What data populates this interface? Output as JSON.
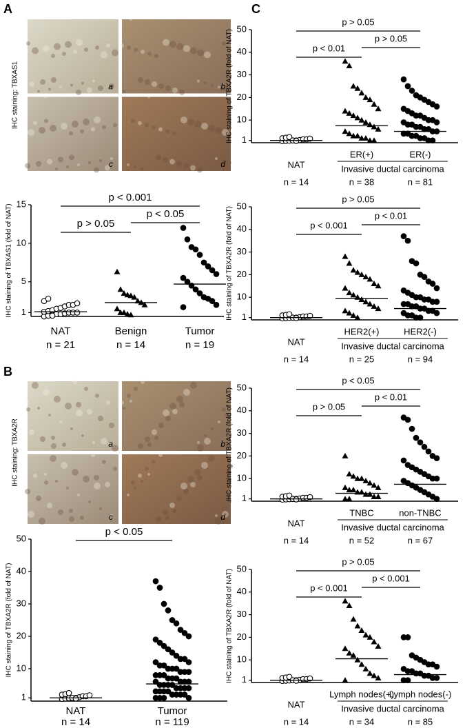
{
  "panel_labels": [
    "A",
    "B",
    "C"
  ],
  "micrographs": [
    {
      "stain": "IHC staining: TBXAS1",
      "tiles": [
        "a",
        "b",
        "c",
        "d"
      ]
    },
    {
      "stain": "IHC staining: TBXA2R",
      "tiles": [
        "a",
        "b",
        "c",
        "d"
      ]
    }
  ],
  "chart_data": [
    {
      "type": "scatter",
      "ylabel": "IHC staining of TBXAS1 (fold of NAT)",
      "ylim": [
        0.5,
        15
      ],
      "yticks": [
        1,
        5,
        10,
        15
      ],
      "groups": [
        {
          "name": "NAT",
          "n": "n = 21",
          "marker": "open-circle",
          "median": 1.1,
          "values": [
            0.5,
            0.6,
            0.7,
            0.8,
            0.8,
            0.9,
            1,
            1,
            1,
            1.1,
            1.2,
            1.3,
            1.5,
            1.6,
            1.8,
            2,
            2,
            2.2,
            2.5,
            2.8,
            0.6
          ]
        },
        {
          "name": "Benign",
          "n": "n = 14",
          "marker": "triangle",
          "median": 2.3,
          "values": [
            6.3,
            4,
            3.5,
            3.3,
            3.2,
            3,
            2.5,
            2.3,
            2,
            1.5,
            1,
            1,
            0.8,
            0.7
          ]
        },
        {
          "name": "Tumor",
          "n": "n = 19",
          "marker": "filled-circle",
          "median": 4.7,
          "values": [
            12,
            10.5,
            9.5,
            9.2,
            8.5,
            7.5,
            7,
            6.5,
            6,
            5.5,
            5,
            4.5,
            4,
            3.5,
            3,
            2.8,
            2.5,
            2,
            1.7
          ]
        }
      ],
      "comparisons": [
        {
          "label": "p < 0.001",
          "from": 0,
          "to": 2
        },
        {
          "label": "p < 0.05",
          "from": 1,
          "to": 2
        },
        {
          "label": "p > 0.05",
          "from": 0,
          "to": 1
        }
      ]
    },
    {
      "type": "scatter",
      "ylabel": "IHC staining of TBXA2R (fold of NAT)",
      "ylim": [
        0,
        50
      ],
      "yticks": [
        1,
        10,
        20,
        30,
        40,
        50
      ],
      "groups": [
        {
          "name": "NAT",
          "n": "n = 14",
          "marker": "open-circle",
          "median": 1.0,
          "values": [
            0.7,
            0.8,
            0.9,
            1,
            1,
            1.2,
            1.5,
            1.5,
            1.8,
            2,
            2.2,
            2.5,
            1,
            0.8
          ]
        },
        {
          "name": "Tumor",
          "n": "n = 119",
          "marker": "filled-circle",
          "median": 5.3,
          "values": [
            37,
            35,
            30,
            28,
            25,
            24,
            22,
            21,
            20,
            19,
            18,
            17,
            16,
            15,
            14,
            13,
            13,
            12,
            12,
            11,
            11,
            10,
            10,
            10,
            9,
            9,
            9,
            8,
            8,
            8,
            7,
            7,
            7,
            6,
            6,
            6,
            6,
            5,
            5,
            5,
            5,
            4,
            4,
            4,
            4,
            3,
            3,
            3,
            3,
            2,
            2,
            2,
            2,
            1,
            1,
            1,
            1
          ]
        }
      ],
      "comparisons": [
        {
          "label": "p < 0.05",
          "from": 0,
          "to": 1
        }
      ]
    },
    {
      "type": "scatter",
      "ylabel": "IHC staining of TBXA2R (fold of NAT)",
      "ylim": [
        0,
        50
      ],
      "yticks": [
        1,
        10,
        20,
        30,
        40,
        50
      ],
      "group_caption": "Invasive ductal carcinoma",
      "groups": [
        {
          "name": "NAT",
          "n": "n = 14",
          "marker": "open-circle",
          "median": 1.0,
          "values": [
            0.7,
            0.8,
            0.9,
            1,
            1,
            1.2,
            1.5,
            1.5,
            1.8,
            2,
            2.2,
            2.5,
            1,
            0.8
          ]
        },
        {
          "name": "ER(+)",
          "n": "n = 38",
          "marker": "triangle",
          "median": 7.5,
          "values": [
            36,
            34,
            25,
            24,
            22,
            20,
            19,
            17,
            15,
            14,
            13,
            12,
            11,
            10,
            9,
            8,
            7,
            6,
            5,
            4,
            3,
            3,
            2,
            2,
            1,
            1
          ]
        },
        {
          "name": "ER(-)",
          "n": "n = 81",
          "marker": "filled-circle",
          "median": 5,
          "values": [
            28,
            25,
            23,
            21,
            20,
            19,
            18,
            17,
            16,
            15,
            14,
            13,
            12,
            12,
            11,
            10,
            10,
            9,
            9,
            8,
            8,
            7,
            7,
            6,
            6,
            5,
            5,
            4,
            4,
            3,
            3,
            2,
            2,
            1,
            1
          ]
        }
      ],
      "comparisons": [
        {
          "label": "p > 0.05",
          "from": 0,
          "to": 2
        },
        {
          "label": "p > 0.05",
          "from": 1,
          "to": 2
        },
        {
          "label": "p < 0.01",
          "from": 0,
          "to": 1
        }
      ]
    },
    {
      "type": "scatter",
      "ylabel": "IHC staining of TBXA2R (fold of NAT)",
      "ylim": [
        0,
        50
      ],
      "yticks": [
        1,
        10,
        20,
        30,
        40,
        50
      ],
      "group_caption": "Invasive ductal carcinoma",
      "groups": [
        {
          "name": "NAT",
          "n": "n = 14",
          "marker": "open-circle",
          "median": 1.0,
          "values": [
            0.7,
            0.8,
            0.9,
            1,
            1,
            1.2,
            1.5,
            1.5,
            1.8,
            2,
            2.2,
            2.5,
            1,
            0.8
          ]
        },
        {
          "name": "HER2(+)",
          "n": "n = 25",
          "marker": "triangle",
          "median": 9.5,
          "values": [
            28,
            25,
            22,
            21,
            20,
            19,
            18,
            16,
            15,
            14,
            12,
            11,
            10,
            9,
            8,
            7,
            6,
            5,
            4,
            3,
            2,
            1
          ]
        },
        {
          "name": "HER2(-)",
          "n": "n = 94",
          "marker": "filled-circle",
          "median": 5,
          "values": [
            37,
            35,
            26,
            25,
            20,
            19,
            17,
            16,
            14,
            13,
            12,
            11,
            10,
            10,
            9,
            9,
            8,
            8,
            7,
            7,
            6,
            6,
            5,
            5,
            4,
            4,
            3,
            3,
            2,
            2,
            1,
            1
          ]
        }
      ],
      "comparisons": [
        {
          "label": "p > 0.05",
          "from": 0,
          "to": 2
        },
        {
          "label": "p < 0.01",
          "from": 1,
          "to": 2
        },
        {
          "label": "p < 0.001",
          "from": 0,
          "to": 1
        }
      ]
    },
    {
      "type": "scatter",
      "ylabel": "IHC staining of TBXA2R (fold of NAT)",
      "ylim": [
        0,
        50
      ],
      "yticks": [
        1,
        10,
        20,
        30,
        40,
        50
      ],
      "group_caption": "Invasive ductal carcinoma",
      "groups": [
        {
          "name": "NAT",
          "n": "n = 14",
          "marker": "open-circle",
          "median": 1.0,
          "values": [
            0.7,
            0.8,
            0.9,
            1,
            1,
            1.2,
            1.5,
            1.5,
            1.8,
            2,
            2.2,
            2.5,
            1,
            0.8
          ]
        },
        {
          "name": "TNBC",
          "n": "n = 52",
          "marker": "triangle",
          "median": 3.5,
          "values": [
            20,
            12,
            11,
            10,
            10,
            9,
            8,
            7,
            6,
            6,
            5,
            5,
            4,
            4,
            3,
            3,
            2,
            2,
            1,
            1
          ]
        },
        {
          "name": "non-TNBC",
          "n": "n = 67",
          "marker": "filled-circle",
          "median": 7.5,
          "values": [
            37,
            36,
            32,
            28,
            26,
            24,
            22,
            20,
            19,
            18,
            16,
            15,
            14,
            13,
            12,
            11,
            10,
            10,
            9,
            8,
            7,
            6,
            5,
            4,
            3,
            2,
            1
          ]
        }
      ],
      "comparisons": [
        {
          "label": "p < 0.05",
          "from": 0,
          "to": 2
        },
        {
          "label": "p < 0.01",
          "from": 1,
          "to": 2
        },
        {
          "label": "p > 0.05",
          "from": 0,
          "to": 1
        }
      ]
    },
    {
      "type": "scatter",
      "ylabel": "IHC staining of TBXA2R (fold of NAT)",
      "ylim": [
        0,
        50
      ],
      "yticks": [
        1,
        10,
        20,
        30,
        40,
        50
      ],
      "group_caption": "Invasive ductal carcinoma",
      "groups": [
        {
          "name": "NAT",
          "n": "n = 14",
          "marker": "open-circle",
          "median": 1.0,
          "values": [
            0.7,
            0.8,
            0.9,
            1,
            1,
            1.2,
            1.5,
            1.5,
            1.8,
            2,
            2.2,
            2.5,
            1,
            0.8
          ]
        },
        {
          "name": "Lymph nodes(+)",
          "n": "n = 34",
          "marker": "triangle",
          "median": 10.5,
          "values": [
            36,
            34,
            28,
            25,
            23,
            21,
            20,
            18,
            16,
            15,
            13,
            12,
            10,
            8,
            6,
            4,
            3,
            2,
            1
          ]
        },
        {
          "name": "Lymph nodes(-)",
          "n": "n = 85",
          "marker": "filled-circle",
          "median": 3.5,
          "values": [
            20,
            20,
            12,
            11,
            10,
            9,
            8,
            8,
            7,
            6,
            5,
            5,
            4,
            4,
            3,
            3,
            2,
            2,
            1,
            1
          ]
        }
      ],
      "comparisons": [
        {
          "label": "p > 0.05",
          "from": 0,
          "to": 2
        },
        {
          "label": "p < 0.001",
          "from": 1,
          "to": 2
        },
        {
          "label": "p < 0.001",
          "from": 0,
          "to": 1
        }
      ]
    }
  ]
}
